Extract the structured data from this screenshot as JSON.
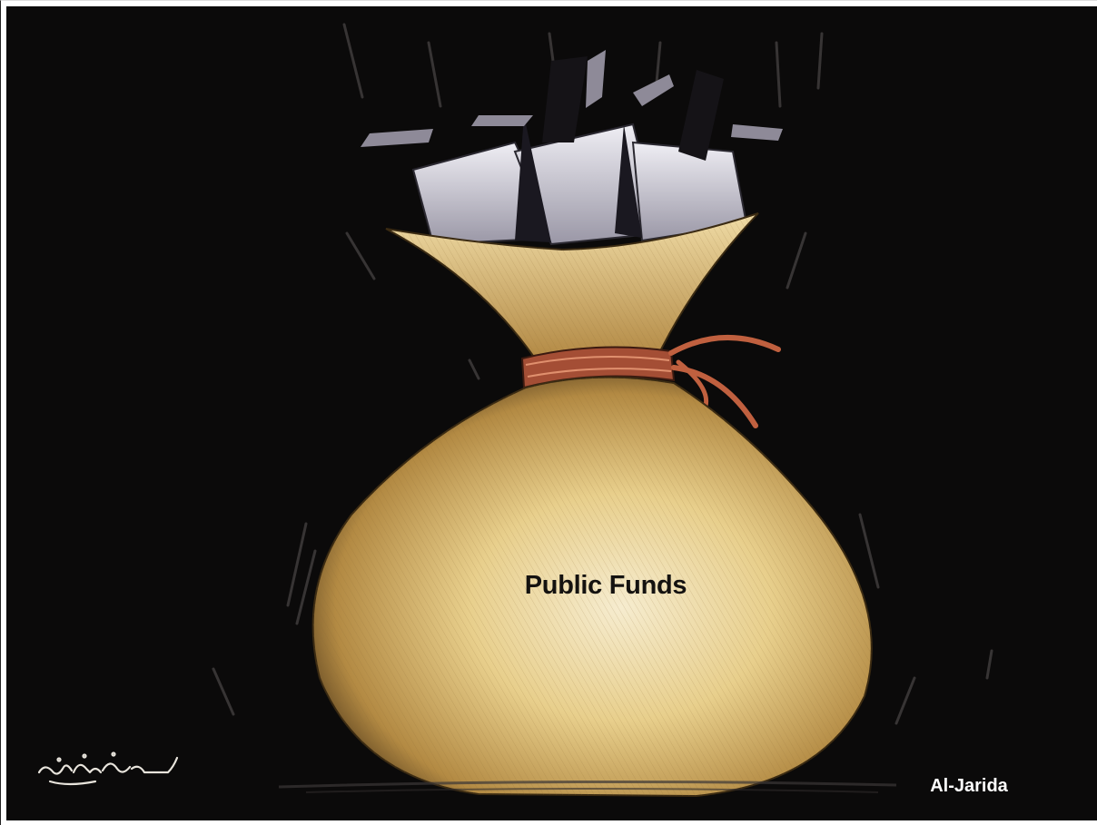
{
  "cartoon": {
    "label": "Public Funds",
    "credit": "Al-Jarida",
    "signature": "زهرشوان"
  },
  "colors": {
    "background": "#0b0a0a",
    "bag": "#e9cf8a",
    "bag_shadow": "#b08a45",
    "papers": "#d8d6df",
    "tie": "#c0603f",
    "label_text": "#141210",
    "credit_text": "#ffffff"
  },
  "icons": [
    "money-bag-icon",
    "papers-icon",
    "signature-icon"
  ]
}
